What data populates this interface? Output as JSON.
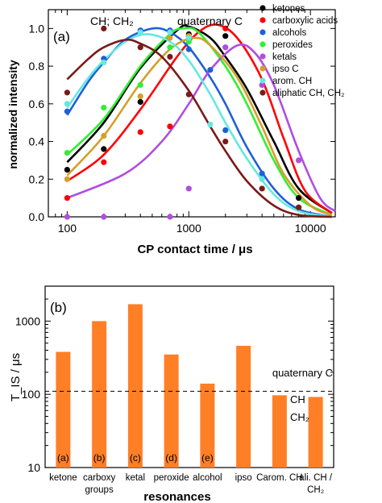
{
  "chart_data": [
    {
      "type": "line",
      "panel_label": "(a)",
      "xlabel": "CP contact time / μs",
      "ylabel": "normalized intensity",
      "xscale": "log",
      "xlim": [
        70,
        16000
      ],
      "ylim": [
        0,
        1.1
      ],
      "xticks": [
        100,
        1000,
        10000
      ],
      "xtick_labels": [
        "100",
        "1000",
        "10000"
      ],
      "yticks": [
        0,
        0.2,
        0.4,
        0.6,
        0.8,
        1.0
      ],
      "ytick_labels": [
        "0.0",
        "0.2",
        "0.4",
        "0.6",
        "0.8",
        "1.0"
      ],
      "legend_position": "top-right",
      "annotations": [
        "CH; CH₂",
        "quaternary C"
      ],
      "series": [
        {
          "name": "ketones",
          "color": "#000000",
          "points": [
            [
              100,
              0.25
            ],
            [
              200,
              0.36
            ],
            [
              400,
              0.61
            ],
            [
              1000,
              0.97
            ],
            [
              2000,
              0.96
            ],
            [
              8000,
              0.1
            ]
          ],
          "curve": [
            [
              100,
              0.29
            ],
            [
              200,
              0.5
            ],
            [
              400,
              0.79
            ],
            [
              800,
              0.99
            ],
            [
              1000,
              1.01
            ],
            [
              1500,
              0.95
            ],
            [
              2000,
              0.85
            ],
            [
              3000,
              0.68
            ],
            [
              5000,
              0.4
            ],
            [
              8000,
              0.15
            ],
            [
              15000,
              0.02
            ]
          ]
        },
        {
          "name": "carboxylic acids",
          "color": "#ff0000",
          "points": [
            [
              100,
              0.1
            ],
            [
              200,
              0.29
            ],
            [
              400,
              0.45
            ],
            [
              700,
              0.48
            ],
            [
              1000,
              0.96
            ],
            [
              2000,
              1.0
            ],
            [
              8000,
              0.05
            ]
          ],
          "curve": [
            [
              100,
              0.19
            ],
            [
              200,
              0.33
            ],
            [
              400,
              0.57
            ],
            [
              800,
              0.85
            ],
            [
              1200,
              0.98
            ],
            [
              1700,
              1.02
            ],
            [
              2500,
              0.95
            ],
            [
              4000,
              0.73
            ],
            [
              6000,
              0.42
            ],
            [
              9000,
              0.14
            ],
            [
              15000,
              0.02
            ]
          ]
        },
        {
          "name": "alcohols",
          "color": "#1f5fd8",
          "points": [
            [
              100,
              0.56
            ],
            [
              200,
              0.84
            ],
            [
              400,
              0.99
            ],
            [
              700,
              0.99
            ],
            [
              1000,
              0.89
            ],
            [
              1500,
              0.78
            ],
            [
              2000,
              0.46
            ],
            [
              4000,
              0.23
            ],
            [
              8000,
              0.05
            ]
          ],
          "curve": [
            [
              100,
              0.54
            ],
            [
              150,
              0.72
            ],
            [
              200,
              0.82
            ],
            [
              300,
              0.94
            ],
            [
              500,
              1.0
            ],
            [
              700,
              0.98
            ],
            [
              1000,
              0.9
            ],
            [
              1500,
              0.74
            ],
            [
              2000,
              0.6
            ],
            [
              3000,
              0.37
            ],
            [
              5000,
              0.15
            ],
            [
              8000,
              0.04
            ],
            [
              15000,
              0.0
            ]
          ]
        },
        {
          "name": "peroxides",
          "color": "#33ee33",
          "points": [
            [
              100,
              0.34
            ],
            [
              200,
              0.58
            ],
            [
              400,
              0.7
            ],
            [
              700,
              0.9
            ],
            [
              1000,
              0.93
            ],
            [
              2000,
              0.9
            ],
            [
              8000,
              0.05
            ]
          ],
          "curve": [
            [
              100,
              0.33
            ],
            [
              200,
              0.52
            ],
            [
              400,
              0.8
            ],
            [
              700,
              0.97
            ],
            [
              900,
              1.0
            ],
            [
              1200,
              0.98
            ],
            [
              2000,
              0.8
            ],
            [
              3000,
              0.6
            ],
            [
              5000,
              0.3
            ],
            [
              8000,
              0.1
            ],
            [
              15000,
              0.01
            ]
          ]
        },
        {
          "name": "ketals",
          "color": "#b04ee0",
          "points": [
            [
              100,
              0.0
            ],
            [
              200,
              0.0
            ],
            [
              700,
              0.0
            ],
            [
              1000,
              0.15
            ],
            [
              2000,
              0.9
            ],
            [
              4000,
              0.7
            ],
            [
              8000,
              0.3
            ]
          ],
          "curve": [
            [
              100,
              0.1
            ],
            [
              300,
              0.23
            ],
            [
              600,
              0.4
            ],
            [
              1000,
              0.6
            ],
            [
              1500,
              0.78
            ],
            [
              2500,
              0.91
            ],
            [
              3500,
              0.87
            ],
            [
              5000,
              0.7
            ],
            [
              8000,
              0.35
            ],
            [
              12000,
              0.1
            ],
            [
              16000,
              0.03
            ]
          ]
        },
        {
          "name": "ipso C",
          "color": "#d4a02a",
          "points": [
            [
              100,
              0.2
            ],
            [
              200,
              0.43
            ],
            [
              400,
              0.64
            ],
            [
              700,
              0.95
            ],
            [
              1000,
              0.96
            ],
            [
              8000,
              0.05
            ]
          ],
          "curve": [
            [
              100,
              0.22
            ],
            [
              200,
              0.43
            ],
            [
              400,
              0.71
            ],
            [
              700,
              0.89
            ],
            [
              1100,
              0.95
            ],
            [
              1500,
              0.91
            ],
            [
              2500,
              0.74
            ],
            [
              4000,
              0.48
            ],
            [
              6000,
              0.23
            ],
            [
              10000,
              0.06
            ],
            [
              15000,
              0.01
            ]
          ]
        },
        {
          "name": "arom. CH",
          "color": "#66e8e0",
          "points": [
            [
              100,
              0.6
            ],
            [
              200,
              0.82
            ],
            [
              400,
              0.98
            ],
            [
              700,
              0.98
            ],
            [
              1000,
              0.95
            ],
            [
              1500,
              0.49
            ],
            [
              4000,
              0.2
            ],
            [
              8000,
              0.05
            ]
          ],
          "curve": [
            [
              100,
              0.58
            ],
            [
              150,
              0.74
            ],
            [
              200,
              0.83
            ],
            [
              300,
              0.93
            ],
            [
              450,
              0.97
            ],
            [
              700,
              0.93
            ],
            [
              1000,
              0.83
            ],
            [
              1500,
              0.65
            ],
            [
              2000,
              0.5
            ],
            [
              3000,
              0.31
            ],
            [
              5000,
              0.12
            ],
            [
              8000,
              0.03
            ],
            [
              15000,
              0.0
            ]
          ]
        },
        {
          "name": "aliphatic CH, CH₂",
          "color": "#7a1a1a",
          "points": [
            [
              100,
              0.66
            ],
            [
              200,
              1.0
            ],
            [
              400,
              0.9
            ],
            [
              700,
              0.85
            ],
            [
              1000,
              0.65
            ],
            [
              2000,
              0.4
            ],
            [
              4000,
              0.15
            ],
            [
              8000,
              0.05
            ]
          ],
          "curve": [
            [
              100,
              0.73
            ],
            [
              150,
              0.84
            ],
            [
              200,
              0.9
            ],
            [
              300,
              0.94
            ],
            [
              400,
              0.92
            ],
            [
              600,
              0.85
            ],
            [
              1000,
              0.67
            ],
            [
              1500,
              0.48
            ],
            [
              2000,
              0.35
            ],
            [
              3000,
              0.19
            ],
            [
              5000,
              0.06
            ],
            [
              8000,
              0.01
            ],
            [
              15000,
              0.0
            ]
          ]
        }
      ]
    },
    {
      "type": "bar",
      "panel_label": "(b)",
      "xlabel": "resonances",
      "ylabel": "T_IS / μs",
      "yscale": "log",
      "ylim": [
        10,
        3000
      ],
      "yticks": [
        10,
        100,
        1000
      ],
      "ytick_labels": [
        "10",
        "100",
        "1000"
      ],
      "bar_color": "#ff7f27",
      "categories": [
        "ketone",
        "carboxy groups",
        "ketal",
        "peroxide",
        "alcohol",
        "ipso",
        "Carom. CH",
        "ali. CH / CH₂"
      ],
      "values": [
        380,
        1000,
        1700,
        350,
        140,
        460,
        97,
        92
      ],
      "bar_labels": [
        "(a)",
        "(b)",
        "(c)",
        "(d)",
        "(e)",
        "",
        "",
        ""
      ],
      "reference_line": {
        "value": 110,
        "label": "quaternary C",
        "style": "dashed"
      },
      "annotations": [
        "CH",
        "CH₂"
      ]
    }
  ]
}
